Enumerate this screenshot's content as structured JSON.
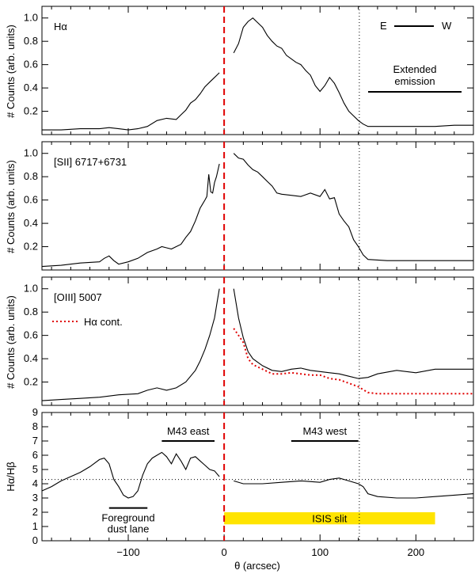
{
  "chart_data": [
    {
      "type": "line",
      "panel": "halpha",
      "label": "Hα",
      "xlim": [
        -190,
        260
      ],
      "ylim": [
        0,
        1.1
      ],
      "yticks": [
        0.2,
        0.4,
        0.6,
        0.8,
        1.0
      ],
      "ylabel": "# Counts (arb. units)",
      "annotations": {
        "east": "E",
        "west": "W",
        "extended": "Extended emission"
      },
      "series": [
        {
          "x": [
            -190,
            -170,
            -150,
            -130,
            -120,
            -110,
            -100,
            -90,
            -80,
            -70,
            -60,
            -50,
            -45,
            -40,
            -35,
            -30,
            -25,
            -20,
            -15,
            -10,
            -5,
            10,
            15,
            20,
            25,
            30,
            35,
            40,
            45,
            50,
            55,
            60,
            65,
            70,
            75,
            80,
            85,
            90,
            95,
            100,
            105,
            110,
            115,
            120,
            125,
            130,
            135,
            140,
            145,
            150,
            160,
            180,
            200,
            220,
            240,
            260
          ],
          "y": [
            0.04,
            0.04,
            0.05,
            0.05,
            0.06,
            0.05,
            0.04,
            0.05,
            0.07,
            0.12,
            0.14,
            0.13,
            0.17,
            0.21,
            0.27,
            0.3,
            0.35,
            0.41,
            0.45,
            0.49,
            0.53,
            0.7,
            0.78,
            0.92,
            0.97,
            1.0,
            0.96,
            0.92,
            0.85,
            0.8,
            0.76,
            0.74,
            0.68,
            0.65,
            0.62,
            0.6,
            0.55,
            0.51,
            0.42,
            0.37,
            0.42,
            0.49,
            0.44,
            0.36,
            0.27,
            0.2,
            0.16,
            0.12,
            0.09,
            0.07,
            0.07,
            0.07,
            0.07,
            0.07,
            0.08,
            0.08
          ]
        }
      ]
    },
    {
      "type": "line",
      "panel": "sii",
      "label": "[SII] 6717+6731",
      "xlim": [
        -190,
        260
      ],
      "ylim": [
        0,
        1.1
      ],
      "yticks": [
        0.2,
        0.4,
        0.6,
        0.8,
        1.0
      ],
      "ylabel": "# Counts (arb. units)",
      "series": [
        {
          "x": [
            -190,
            -170,
            -150,
            -130,
            -125,
            -120,
            -115,
            -110,
            -100,
            -90,
            -80,
            -70,
            -65,
            -60,
            -55,
            -50,
            -45,
            -40,
            -35,
            -30,
            -25,
            -20,
            -18,
            -16,
            -14,
            -12,
            -10,
            -8,
            -5,
            10,
            15,
            20,
            25,
            30,
            35,
            40,
            45,
            50,
            55,
            60,
            70,
            80,
            90,
            100,
            105,
            110,
            115,
            120,
            125,
            130,
            135,
            140,
            145,
            150,
            170,
            200,
            230,
            260
          ],
          "y": [
            0.03,
            0.04,
            0.06,
            0.07,
            0.1,
            0.12,
            0.08,
            0.05,
            0.07,
            0.1,
            0.15,
            0.18,
            0.2,
            0.19,
            0.18,
            0.2,
            0.22,
            0.28,
            0.33,
            0.42,
            0.53,
            0.6,
            0.63,
            0.82,
            0.67,
            0.66,
            0.75,
            0.8,
            0.91,
            1.0,
            0.96,
            0.95,
            0.9,
            0.86,
            0.84,
            0.8,
            0.76,
            0.72,
            0.66,
            0.65,
            0.64,
            0.63,
            0.66,
            0.63,
            0.69,
            0.61,
            0.62,
            0.48,
            0.42,
            0.37,
            0.26,
            0.2,
            0.13,
            0.09,
            0.08,
            0.08,
            0.08,
            0.08
          ]
        }
      ]
    },
    {
      "type": "line",
      "panel": "oiii",
      "label": "[OIII] 5007",
      "legend_label": "Hα cont.",
      "xlim": [
        -190,
        260
      ],
      "ylim": [
        0,
        1.1
      ],
      "yticks": [
        0.2,
        0.4,
        0.6,
        0.8,
        1.0
      ],
      "ylabel": "# Counts (arb. units)",
      "series": [
        {
          "x": [
            -190,
            -170,
            -150,
            -130,
            -110,
            -90,
            -80,
            -70,
            -60,
            -50,
            -40,
            -30,
            -25,
            -20,
            -15,
            -10,
            -7,
            -5,
            10,
            15,
            20,
            25,
            30,
            40,
            50,
            60,
            70,
            80,
            90,
            100,
            110,
            120,
            130,
            140,
            150,
            160,
            180,
            200,
            220,
            240,
            260
          ],
          "y": [
            0.04,
            0.05,
            0.06,
            0.07,
            0.09,
            0.1,
            0.13,
            0.15,
            0.13,
            0.15,
            0.2,
            0.3,
            0.38,
            0.48,
            0.6,
            0.75,
            0.9,
            1.0,
            1.0,
            0.75,
            0.58,
            0.46,
            0.4,
            0.34,
            0.3,
            0.29,
            0.31,
            0.32,
            0.3,
            0.29,
            0.28,
            0.27,
            0.25,
            0.23,
            0.24,
            0.27,
            0.3,
            0.28,
            0.31,
            0.31,
            0.31
          ]
        },
        {
          "name": "Hα cont.",
          "x": [
            10,
            15,
            20,
            25,
            30,
            40,
            50,
            60,
            70,
            80,
            90,
            100,
            110,
            120,
            130,
            140,
            150,
            160,
            180,
            200,
            220,
            240,
            260
          ],
          "y": [
            0.66,
            0.6,
            0.54,
            0.4,
            0.35,
            0.31,
            0.27,
            0.27,
            0.28,
            0.27,
            0.26,
            0.26,
            0.23,
            0.22,
            0.19,
            0.16,
            0.11,
            0.1,
            0.1,
            0.1,
            0.1,
            0.1,
            0.1
          ]
        }
      ]
    },
    {
      "type": "line",
      "panel": "ratio",
      "ylabel": "Hα/Hβ",
      "xlabel": "θ (arcsec)",
      "xlim": [
        -190,
        260
      ],
      "ylim": [
        0,
        9
      ],
      "yticks": [
        0,
        1,
        2,
        3,
        4,
        5,
        6,
        7,
        8,
        9
      ],
      "xticks": [
        -100,
        0,
        100,
        200
      ],
      "reference_y": 4.3,
      "bars": [
        {
          "label": "M43 east",
          "x0": -65,
          "x1": -10,
          "y": 7.0
        },
        {
          "label": "M43 west",
          "x0": 70,
          "x1": 140,
          "y": 7.0
        },
        {
          "label": "Foreground dust lane",
          "x0": -120,
          "x1": -80,
          "y": 2.3
        }
      ],
      "slit_label": "ISIS slit",
      "slit": {
        "x0": 0,
        "x1": 220,
        "y0": 1.15,
        "y1": 2.0
      },
      "series": [
        {
          "x": [
            -190,
            -180,
            -170,
            -160,
            -150,
            -140,
            -130,
            -125,
            -120,
            -115,
            -110,
            -105,
            -100,
            -95,
            -90,
            -85,
            -80,
            -75,
            -70,
            -65,
            -60,
            -55,
            -50,
            -45,
            -40,
            -35,
            -30,
            -25,
            -20,
            -15,
            -10,
            -5,
            10,
            20,
            40,
            60,
            80,
            100,
            110,
            120,
            130,
            140,
            145,
            150,
            160,
            180,
            200,
            220,
            240,
            260
          ],
          "y": [
            3.5,
            3.8,
            4.2,
            4.5,
            4.8,
            5.2,
            5.7,
            5.8,
            5.4,
            4.3,
            3.8,
            3.2,
            3.0,
            3.1,
            3.5,
            4.6,
            5.4,
            5.8,
            6.0,
            6.2,
            5.9,
            5.4,
            6.1,
            5.6,
            5.0,
            5.8,
            5.9,
            5.6,
            5.3,
            5.0,
            4.9,
            4.5,
            4.2,
            4.0,
            4.0,
            4.1,
            4.2,
            4.1,
            4.3,
            4.4,
            4.2,
            4.0,
            3.8,
            3.3,
            3.1,
            3.0,
            3.0,
            3.1,
            3.2,
            3.3
          ]
        }
      ]
    }
  ]
}
